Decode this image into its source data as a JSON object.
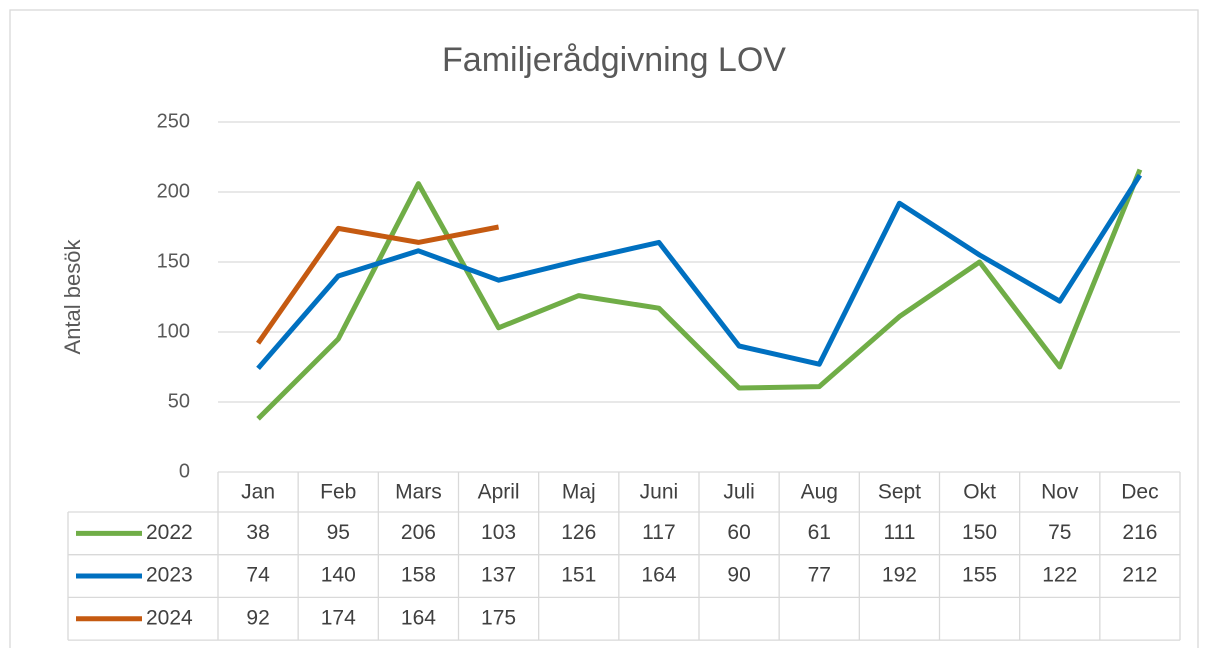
{
  "chart_data": {
    "type": "line",
    "title": "Familjerådgivning LOV",
    "y_label": "Antal besök",
    "categories": [
      "Jan",
      "Feb",
      "Mars",
      "April",
      "Maj",
      "Juni",
      "Juli",
      "Aug",
      "Sept",
      "Okt",
      "Nov",
      "Dec"
    ],
    "series": [
      {
        "name": "2022",
        "color": "#70ad47",
        "values": [
          38,
          95,
          206,
          103,
          126,
          117,
          60,
          61,
          111,
          150,
          75,
          216
        ]
      },
      {
        "name": "2023",
        "color": "#0070c0",
        "values": [
          74,
          140,
          158,
          137,
          151,
          164,
          90,
          77,
          192,
          155,
          122,
          212
        ]
      },
      {
        "name": "2024",
        "color": "#c55a11",
        "values": [
          92,
          174,
          164,
          175,
          null,
          null,
          null,
          null,
          null,
          null,
          null,
          null
        ]
      }
    ],
    "ylim": [
      0,
      250
    ],
    "yticks": [
      0,
      50,
      100,
      150,
      200,
      250
    ],
    "grid": true,
    "data_table": true
  }
}
